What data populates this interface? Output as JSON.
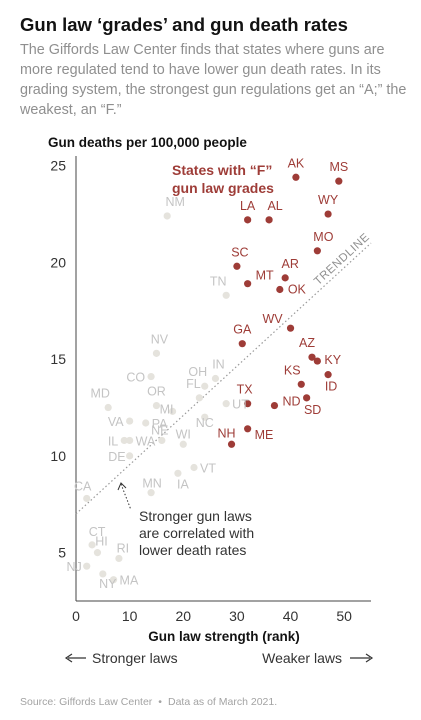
{
  "header": {
    "title": "Gun law ‘grades’ and gun death rates",
    "subtitle": "The Giffords Law Center finds that states where guns are more regulated tend to have lower gun death rates. In its grading system, the strongest gun regulations get an “A;” the weakest, an “F.”"
  },
  "footer": {
    "source": "Source: Giffords Law Center",
    "asof": "Data as of March 2021."
  },
  "colors": {
    "f_grade": "#9e3c37",
    "other": "#e5e3dd",
    "other_label": "#c4c4c4",
    "trend": "#9a9a9a"
  },
  "chart_data": {
    "type": "scatter",
    "ylabel": "Gun deaths per 100,000 people",
    "xlabel": "Gun law strength (rank)",
    "xlim": [
      0,
      55
    ],
    "ylim": [
      2.5,
      25.5
    ],
    "xticks": [
      0,
      10,
      20,
      30,
      40,
      50
    ],
    "yticks": [
      5,
      10,
      15,
      20,
      25
    ],
    "grid": false,
    "direction_left": "Stronger laws",
    "direction_right": "Weaker laws",
    "trendline_label": "TRENDLINE",
    "trendline": {
      "x": [
        0,
        55
      ],
      "y": [
        7.0,
        21.0
      ]
    },
    "group_label": [
      "States with “F”",
      "gun law grades"
    ],
    "annotation": [
      "Stronger gun laws",
      "are correlated with",
      "lower death rates"
    ],
    "points": [
      {
        "state": "AK",
        "x": 41,
        "y": 24.4,
        "f": true
      },
      {
        "state": "MS",
        "x": 49,
        "y": 24.2,
        "f": true
      },
      {
        "state": "LA",
        "x": 32,
        "y": 22.2,
        "f": true
      },
      {
        "state": "AL",
        "x": 36,
        "y": 22.2,
        "f": true
      },
      {
        "state": "WY",
        "x": 47,
        "y": 22.5,
        "f": true
      },
      {
        "state": "MO",
        "x": 45,
        "y": 20.6,
        "f": true
      },
      {
        "state": "SC",
        "x": 30,
        "y": 19.8,
        "f": true
      },
      {
        "state": "AR",
        "x": 39,
        "y": 19.2,
        "f": true
      },
      {
        "state": "MT",
        "x": 32,
        "y": 18.9,
        "f": true
      },
      {
        "state": "OK",
        "x": 38,
        "y": 18.6,
        "f": true
      },
      {
        "state": "WV",
        "x": 40,
        "y": 16.6,
        "f": true
      },
      {
        "state": "GA",
        "x": 31,
        "y": 15.8,
        "f": true
      },
      {
        "state": "AZ",
        "x": 44,
        "y": 15.1,
        "f": true
      },
      {
        "state": "KY",
        "x": 45,
        "y": 14.9,
        "f": true
      },
      {
        "state": "ID",
        "x": 47,
        "y": 14.2,
        "f": true
      },
      {
        "state": "KS",
        "x": 42,
        "y": 13.7,
        "f": true
      },
      {
        "state": "SD",
        "x": 43,
        "y": 13.0,
        "f": true
      },
      {
        "state": "TX",
        "x": 32,
        "y": 12.7,
        "f": true
      },
      {
        "state": "ND",
        "x": 37,
        "y": 12.6,
        "f": true
      },
      {
        "state": "NH",
        "x": 29,
        "y": 10.6,
        "f": true
      },
      {
        "state": "ME",
        "x": 32,
        "y": 11.4,
        "f": true
      },
      {
        "state": "NM",
        "x": 17,
        "y": 22.4,
        "f": false
      },
      {
        "state": "TN",
        "x": 28,
        "y": 18.3,
        "f": false
      },
      {
        "state": "NV",
        "x": 15,
        "y": 15.3,
        "f": false
      },
      {
        "state": "CO",
        "x": 14,
        "y": 14.1,
        "f": false
      },
      {
        "state": "OH",
        "x": 24,
        "y": 13.6,
        "f": false
      },
      {
        "state": "IN",
        "x": 26,
        "y": 14.0,
        "f": false
      },
      {
        "state": "MD",
        "x": 6,
        "y": 12.5,
        "f": false
      },
      {
        "state": "FL",
        "x": 23,
        "y": 13.0,
        "f": false
      },
      {
        "state": "OR",
        "x": 15,
        "y": 12.6,
        "f": false
      },
      {
        "state": "MI",
        "x": 18,
        "y": 12.3,
        "f": false
      },
      {
        "state": "UT",
        "x": 28,
        "y": 12.7,
        "f": false
      },
      {
        "state": "NC",
        "x": 24,
        "y": 12.0,
        "f": false
      },
      {
        "state": "VA",
        "x": 10,
        "y": 11.8,
        "f": false
      },
      {
        "state": "PA",
        "x": 13,
        "y": 11.7,
        "f": false
      },
      {
        "state": "IL",
        "x": 9,
        "y": 10.8,
        "f": false
      },
      {
        "state": "WA",
        "x": 10,
        "y": 10.8,
        "f": false
      },
      {
        "state": "NE",
        "x": 16,
        "y": 10.8,
        "f": false
      },
      {
        "state": "WI",
        "x": 20,
        "y": 10.6,
        "f": false
      },
      {
        "state": "DE",
        "x": 10,
        "y": 10.0,
        "f": false
      },
      {
        "state": "VT",
        "x": 22,
        "y": 9.4,
        "f": false
      },
      {
        "state": "MN",
        "x": 14,
        "y": 8.1,
        "f": false
      },
      {
        "state": "IA",
        "x": 19,
        "y": 9.1,
        "f": false
      },
      {
        "state": "CA",
        "x": 2,
        "y": 7.8,
        "f": false
      },
      {
        "state": "CT",
        "x": 3,
        "y": 5.4,
        "f": false
      },
      {
        "state": "HI",
        "x": 4,
        "y": 5.0,
        "f": false
      },
      {
        "state": "RI",
        "x": 8,
        "y": 4.7,
        "f": false
      },
      {
        "state": "NJ",
        "x": 2,
        "y": 4.3,
        "f": false
      },
      {
        "state": "NY",
        "x": 5,
        "y": 3.9,
        "f": false
      },
      {
        "state": "MA",
        "x": 7,
        "y": 3.6,
        "f": false
      }
    ]
  }
}
